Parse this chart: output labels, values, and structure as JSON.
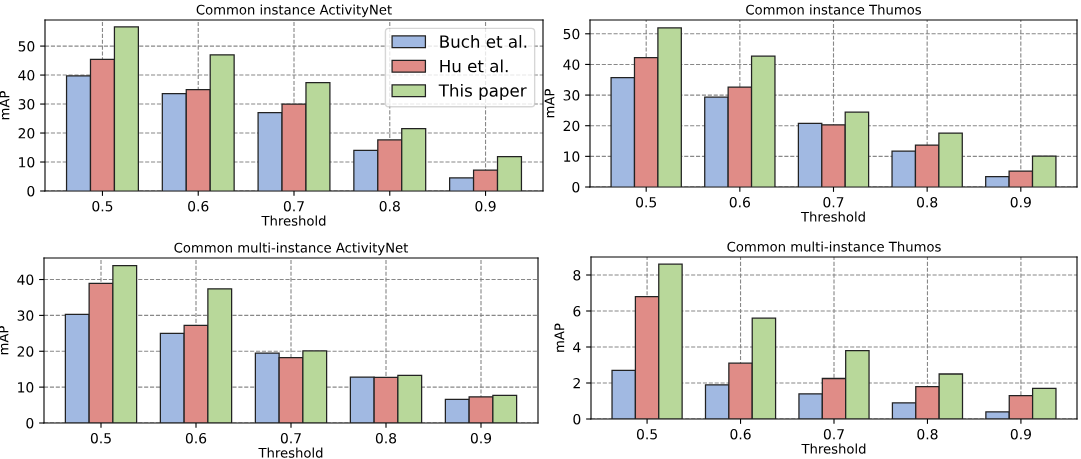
{
  "chart_data": [
    {
      "type": "bar",
      "title": "Common instance ActivityNet",
      "xlabel": "Threshold",
      "ylabel": "mAP",
      "categories": [
        "0.5",
        "0.6",
        "0.7",
        "0.8",
        "0.9"
      ],
      "ylim": [
        0,
        59
      ],
      "yticks": [
        0,
        10,
        20,
        30,
        40,
        50
      ],
      "grid": true,
      "legend": "top right",
      "series": [
        {
          "name": "Buch et al.",
          "color": "#a1b9e2",
          "values": [
            39.7,
            33.6,
            27,
            14,
            4.5
          ]
        },
        {
          "name": "Hu et al.",
          "color": "#e08c87",
          "values": [
            45.4,
            35,
            30,
            17.6,
            7.2
          ]
        },
        {
          "name": "This paper",
          "color": "#b8d89a",
          "values": [
            56.6,
            47,
            37.4,
            21.5,
            11.9
          ]
        }
      ]
    },
    {
      "type": "bar",
      "title": "Common instance Thumos",
      "xlabel": "Threshold",
      "ylabel": "mAP",
      "categories": [
        "0.5",
        "0.6",
        "0.7",
        "0.8",
        "0.9"
      ],
      "ylim": [
        0,
        54.5
      ],
      "yticks": [
        0,
        10,
        20,
        30,
        40,
        50
      ],
      "grid": true,
      "series": [
        {
          "color": "#a1b9e2",
          "values": [
            35.7,
            29.3,
            20.8,
            11.7,
            3.4
          ]
        },
        {
          "color": "#e08c87",
          "values": [
            42.2,
            32.6,
            20.3,
            13.7,
            5.2
          ]
        },
        {
          "color": "#b8d89a",
          "values": [
            51.9,
            42.7,
            24.4,
            17.6,
            10.1
          ]
        }
      ]
    },
    {
      "type": "bar",
      "title": "Common multi-instance ActivityNet",
      "xlabel": "Threshold",
      "ylabel": "mAP",
      "categories": [
        "0.5",
        "0.6",
        "0.7",
        "0.8",
        "0.9"
      ],
      "ylim": [
        0,
        46
      ],
      "yticks": [
        0,
        10,
        20,
        30,
        40
      ],
      "grid": true,
      "series": [
        {
          "color": "#a1b9e2",
          "values": [
            30.3,
            25,
            19.5,
            12.8,
            6.6
          ]
        },
        {
          "color": "#e08c87",
          "values": [
            38.9,
            27.2,
            18.2,
            12.7,
            7.3
          ]
        },
        {
          "color": "#b8d89a",
          "values": [
            43.9,
            37.4,
            20.1,
            13.3,
            7.7
          ]
        }
      ]
    },
    {
      "type": "bar",
      "title": "Common multi-instance Thumos",
      "xlabel": "Threshold",
      "ylabel": "mAP",
      "categories": [
        "0.5",
        "0.6",
        "0.7",
        "0.8",
        "0.9"
      ],
      "ylim": [
        0,
        9
      ],
      "yticks": [
        0,
        2,
        4,
        6,
        8
      ],
      "grid": true,
      "series": [
        {
          "color": "#a1b9e2",
          "values": [
            2.7,
            1.9,
            1.4,
            0.9,
            0.4
          ]
        },
        {
          "color": "#e08c87",
          "values": [
            6.8,
            3.1,
            2.25,
            1.8,
            1.3
          ]
        },
        {
          "color": "#b8d89a",
          "values": [
            8.6,
            5.6,
            3.8,
            2.5,
            1.7
          ]
        }
      ]
    }
  ]
}
